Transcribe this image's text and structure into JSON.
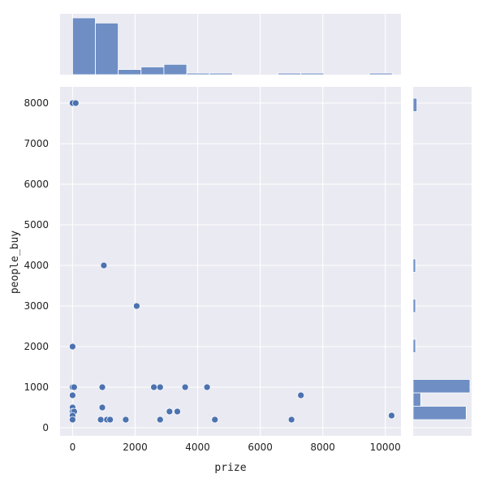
{
  "chart_data": {
    "type": "scatter",
    "title": "",
    "xlabel": "prize",
    "ylabel": "people_buy",
    "xlim": [
      -400,
      10500
    ],
    "ylim": [
      -200,
      8400
    ],
    "xticks": [
      0,
      2000,
      4000,
      6000,
      8000,
      10000
    ],
    "yticks": [
      0,
      1000,
      2000,
      3000,
      4000,
      5000,
      6000,
      7000,
      8000
    ],
    "grid": true,
    "colors": {
      "marker": "#4c72b0",
      "bar": "#6e8ec4",
      "panel": "#eaeaf2"
    },
    "points": [
      {
        "x": 0,
        "y": 8000
      },
      {
        "x": 100,
        "y": 8000
      },
      {
        "x": 1000,
        "y": 4000
      },
      {
        "x": 2050,
        "y": 3000
      },
      {
        "x": 0,
        "y": 2000
      },
      {
        "x": 0,
        "y": 1000
      },
      {
        "x": 50,
        "y": 1000
      },
      {
        "x": 950,
        "y": 1000
      },
      {
        "x": 2600,
        "y": 1000
      },
      {
        "x": 2800,
        "y": 1000
      },
      {
        "x": 3600,
        "y": 1000
      },
      {
        "x": 4300,
        "y": 1000
      },
      {
        "x": 0,
        "y": 800
      },
      {
        "x": 7300,
        "y": 800
      },
      {
        "x": 0,
        "y": 500
      },
      {
        "x": 950,
        "y": 500
      },
      {
        "x": 0,
        "y": 400
      },
      {
        "x": 50,
        "y": 400
      },
      {
        "x": 3100,
        "y": 400
      },
      {
        "x": 3350,
        "y": 400
      },
      {
        "x": 0,
        "y": 300
      },
      {
        "x": 10200,
        "y": 300
      },
      {
        "x": 0,
        "y": 200
      },
      {
        "x": 900,
        "y": 200
      },
      {
        "x": 1100,
        "y": 200
      },
      {
        "x": 1200,
        "y": 200
      },
      {
        "x": 1700,
        "y": 200
      },
      {
        "x": 2800,
        "y": 200
      },
      {
        "x": 4550,
        "y": 200
      },
      {
        "x": 7000,
        "y": 200
      }
    ],
    "x_marginal": {
      "bins": [
        [
          0,
          730
        ],
        [
          730,
          1460
        ],
        [
          1460,
          2190
        ],
        [
          2190,
          2920
        ],
        [
          2920,
          3650
        ],
        [
          3650,
          4380
        ],
        [
          4380,
          5110
        ],
        [
          5110,
          5840
        ],
        [
          5840,
          6570
        ],
        [
          6570,
          7300
        ],
        [
          7300,
          8030
        ],
        [
          8030,
          8760
        ],
        [
          8760,
          9490
        ],
        [
          9490,
          10220
        ]
      ],
      "counts": [
        11,
        10,
        1,
        1.5,
        2,
        0.3,
        0.3,
        0,
        0,
        0.3,
        0.3,
        0,
        0,
        0.3
      ]
    },
    "y_marginal": {
      "bins": [
        [
          200,
          530
        ],
        [
          530,
          860
        ],
        [
          860,
          1190
        ],
        [
          1190,
          1520
        ],
        [
          1520,
          1850
        ],
        [
          1850,
          2180
        ],
        [
          2180,
          2510
        ],
        [
          2510,
          2840
        ],
        [
          2840,
          3170
        ],
        [
          3170,
          3500
        ],
        [
          3500,
          3830
        ],
        [
          3830,
          4160
        ],
        [
          4160,
          4490
        ],
        [
          4490,
          4820
        ],
        [
          4820,
          5150
        ],
        [
          5150,
          5480
        ],
        [
          5480,
          5810
        ],
        [
          5810,
          6140
        ],
        [
          6140,
          6470
        ],
        [
          6470,
          6800
        ],
        [
          6800,
          7130
        ],
        [
          7130,
          7460
        ],
        [
          7460,
          7790
        ],
        [
          7790,
          8120
        ]
      ],
      "counts": [
        14,
        2,
        15,
        0,
        0,
        0.5,
        0,
        0,
        0.5,
        0,
        0,
        0.5,
        0,
        0,
        0,
        0,
        0,
        0,
        0,
        0,
        0,
        0,
        0,
        1
      ]
    }
  }
}
